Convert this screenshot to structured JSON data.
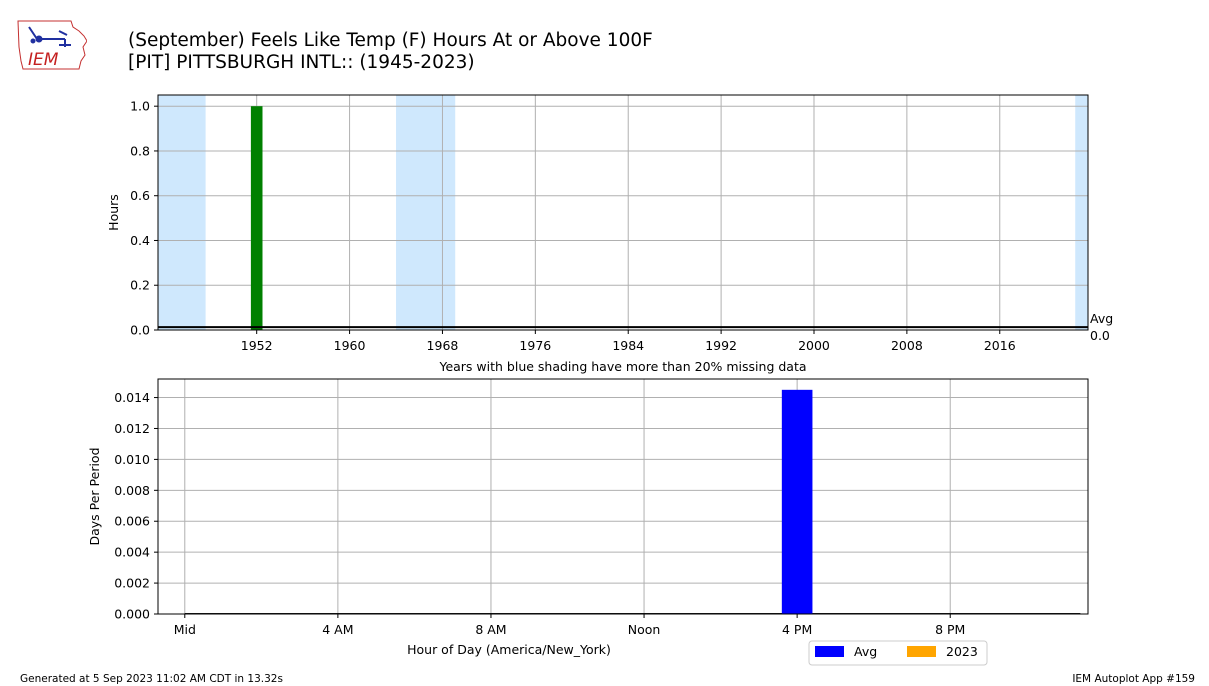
{
  "header": {
    "logo_text": "IEM",
    "title_line1": "(September) Feels Like Temp (F) Hours At or Above 100F",
    "title_line2": "[PIT] PITTSBURGH INTL:: (1945-2023)"
  },
  "chart_data": [
    {
      "type": "bar",
      "ylabel": "Hours",
      "xlabel": "Years with blue shading have more than 20% missing data",
      "xlim": [
        1943.5,
        2023.6
      ],
      "ylim": [
        0,
        1.05
      ],
      "x_ticks": [
        1952,
        1960,
        1968,
        1976,
        1984,
        1992,
        2000,
        2008,
        2016
      ],
      "y_ticks": [
        0.0,
        0.2,
        0.4,
        0.6,
        0.8,
        1.0
      ],
      "shaded_missing_year_spans": [
        [
          1943.5,
          1947.6
        ],
        [
          1964.0,
          1969.1
        ],
        [
          2022.5,
          2023.6
        ]
      ],
      "shading_color": "#cfe8fd",
      "bar_color": "#008000",
      "series": [
        {
          "x": [
            1952
          ],
          "values": [
            1.0
          ]
        }
      ],
      "average_line": {
        "label": "Avg",
        "value_label": "0.0",
        "value": 0.013
      },
      "grid": true
    },
    {
      "type": "bar",
      "ylabel": "Days Per Period",
      "xlabel": "Hour of Day (America/New_York)",
      "xlim": [
        -0.7,
        23.6
      ],
      "ylim": [
        0,
        0.0152
      ],
      "x_ticks": [
        {
          "value": 0,
          "label": "Mid"
        },
        {
          "value": 4,
          "label": "4 AM"
        },
        {
          "value": 8,
          "label": "8 AM"
        },
        {
          "value": 12,
          "label": "Noon"
        },
        {
          "value": 16,
          "label": "4 PM"
        },
        {
          "value": 20,
          "label": "8 PM"
        }
      ],
      "y_ticks": [
        0.0,
        0.002,
        0.004,
        0.006,
        0.008,
        0.01,
        0.012,
        0.014
      ],
      "y_tick_decimals": 3,
      "series": [
        {
          "name": "Avg",
          "color": "#0000ff",
          "x": [
            16
          ],
          "values": [
            0.0145
          ]
        },
        {
          "name": "2023",
          "color": "#ffa500",
          "x": [],
          "values": []
        }
      ],
      "legend": {
        "placement": "below-right",
        "entries": [
          "Avg",
          "2023"
        ]
      },
      "grid": true
    }
  ],
  "footer": {
    "left": "Generated at 5 Sep 2023 11:02 AM CDT in 13.32s",
    "right": "IEM Autoplot App #159"
  }
}
